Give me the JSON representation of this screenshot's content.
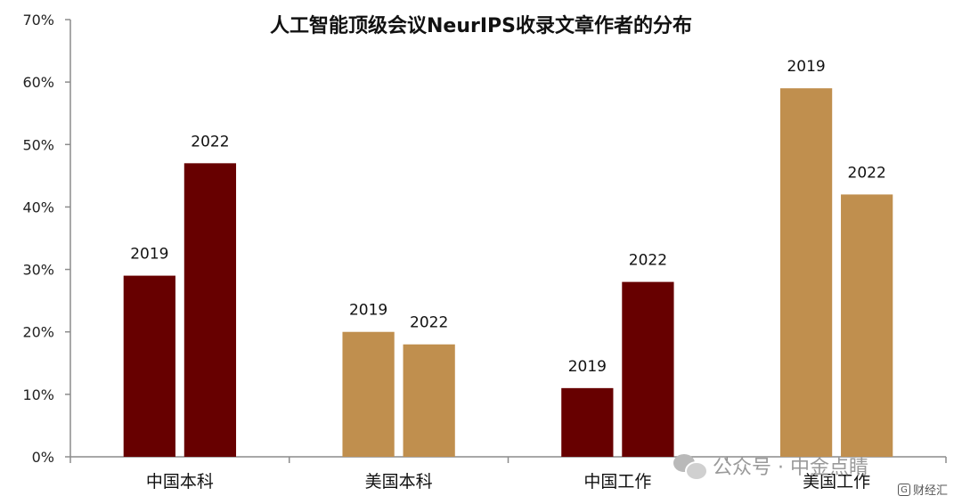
{
  "chart_data": {
    "type": "bar",
    "title": "人工智能顶级会议NeurIPS收录文章作者的分布",
    "categories": [
      "中国本科",
      "美国本科",
      "中国工作",
      "美国工作"
    ],
    "series": [
      {
        "name": "2019",
        "values": [
          29,
          20,
          11,
          59
        ]
      },
      {
        "name": "2022",
        "values": [
          47,
          18,
          28,
          42
        ]
      }
    ],
    "bar_colors": [
      [
        "#670000",
        "#670000"
      ],
      [
        "#c08f4e",
        "#c08f4e"
      ],
      [
        "#670000",
        "#670000"
      ],
      [
        "#c08f4e",
        "#c08f4e"
      ]
    ],
    "ylim": [
      0,
      70
    ],
    "yticks": [
      "0%",
      "10%",
      "20%",
      "30%",
      "40%",
      "50%",
      "60%",
      "70%"
    ],
    "xlabel": "",
    "ylabel": "",
    "grid": false,
    "legend": "none"
  },
  "watermark": {
    "text": "公众号 · 中金点睛",
    "icon": "wechat-icon",
    "source_text": "财经汇",
    "source_icon": "logo-icon"
  }
}
